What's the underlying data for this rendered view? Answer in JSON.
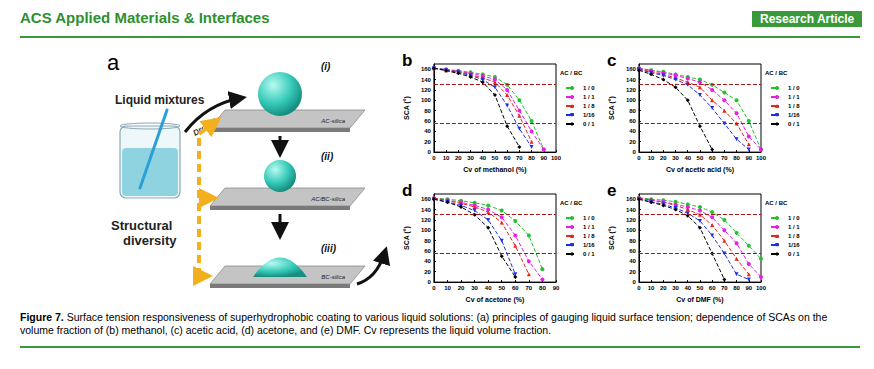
{
  "header": {
    "journal": "ACS Applied Materials & Interfaces",
    "section": "Research Article"
  },
  "panel_a": {
    "label": "a",
    "liquid": "Liquid mixtures",
    "action": "Dropping",
    "structure": "Structural diversity",
    "states": [
      {
        "label": "(i)",
        "surface": "AC-silica"
      },
      {
        "label": "(ii)",
        "surface": "AC/BC-silica"
      },
      {
        "label": "(iii)",
        "surface": "BC-silica"
      }
    ]
  },
  "chart_data": [
    {
      "type": "line",
      "panel": "b",
      "xlabel": "Cv of methanol (%)",
      "ylabel": "SCA (°)",
      "legend_title": "AC / BC",
      "legend": "right",
      "grid": false,
      "line_style": "dashed",
      "x": [
        0,
        10,
        20,
        30,
        40,
        50,
        60,
        70,
        80,
        90,
        100
      ],
      "xlim": [
        0,
        100
      ],
      "xticks": [
        0,
        10,
        20,
        30,
        40,
        50,
        60,
        70,
        80,
        90,
        100
      ],
      "ylim": [
        0,
        170
      ],
      "yticks": [
        0,
        20,
        40,
        60,
        80,
        100,
        120,
        140,
        160
      ],
      "hlines": [
        130,
        55
      ],
      "series": [
        {
          "name": "1 / 0",
          "color": "#22c32e",
          "marker": "circle",
          "values": [
            162,
            160,
            157,
            154,
            150,
            145,
            130,
            100,
            60,
            5,
            null
          ]
        },
        {
          "name": "1 / 1",
          "color": "#e61ee6",
          "marker": "circle",
          "values": [
            162,
            159,
            156,
            152,
            147,
            140,
            120,
            80,
            40,
            5,
            null
          ]
        },
        {
          "name": "1 / 8",
          "color": "#e8251f",
          "marker": "triangle",
          "values": [
            162,
            158,
            155,
            150,
            143,
            135,
            110,
            70,
            20,
            null,
            null
          ]
        },
        {
          "name": "1/16",
          "color": "#1f2fe6",
          "marker": "down-triangle",
          "values": [
            162,
            158,
            154,
            148,
            140,
            125,
            90,
            45,
            10,
            null,
            null
          ]
        },
        {
          "name": "0 / 1",
          "color": "#000000",
          "marker": "diamond",
          "values": [
            162,
            157,
            152,
            145,
            135,
            110,
            50,
            10,
            null,
            null,
            null
          ]
        }
      ]
    },
    {
      "type": "line",
      "panel": "c",
      "xlabel": "Cv of acetic acid (%)",
      "ylabel": "SCA (°)",
      "legend_title": "AC / BC",
      "legend": "right",
      "grid": false,
      "line_style": "dashed",
      "x": [
        0,
        10,
        20,
        30,
        40,
        50,
        60,
        70,
        80,
        90,
        100
      ],
      "xlim": [
        0,
        100
      ],
      "xticks": [
        0,
        10,
        20,
        30,
        40,
        50,
        60,
        70,
        80,
        90,
        100
      ],
      "ylim": [
        0,
        170
      ],
      "yticks": [
        0,
        20,
        40,
        60,
        80,
        100,
        120,
        140,
        160
      ],
      "hlines": [
        130,
        55
      ],
      "series": [
        {
          "name": "1 / 0",
          "color": "#22c32e",
          "marker": "circle",
          "values": [
            162,
            158,
            155,
            150,
            145,
            140,
            130,
            115,
            100,
            60,
            5
          ]
        },
        {
          "name": "1 / 1",
          "color": "#e61ee6",
          "marker": "circle",
          "values": [
            162,
            157,
            153,
            148,
            142,
            135,
            120,
            100,
            75,
            30,
            5
          ]
        },
        {
          "name": "1 / 8",
          "color": "#e8251f",
          "marker": "triangle",
          "values": [
            160,
            155,
            150,
            143,
            135,
            125,
            100,
            80,
            55,
            15,
            null
          ]
        },
        {
          "name": "1/16",
          "color": "#1f2fe6",
          "marker": "down-triangle",
          "values": [
            160,
            153,
            148,
            140,
            130,
            110,
            85,
            55,
            25,
            5,
            null
          ]
        },
        {
          "name": "0 / 1",
          "color": "#000000",
          "marker": "diamond",
          "values": [
            158,
            150,
            140,
            125,
            100,
            50,
            5,
            null,
            null,
            null,
            null
          ]
        }
      ]
    },
    {
      "type": "line",
      "panel": "d",
      "xlabel": "Cv of acetone (%)",
      "ylabel": "SCA (°)",
      "legend_title": "AC / BC",
      "legend": "right",
      "grid": false,
      "line_style": "dashed",
      "x": [
        0,
        10,
        20,
        30,
        40,
        50,
        60,
        70,
        80,
        90
      ],
      "xlim": [
        0,
        90
      ],
      "xticks": [
        0,
        10,
        20,
        30,
        40,
        50,
        60,
        70,
        80,
        90
      ],
      "ylim": [
        0,
        170
      ],
      "yticks": [
        0,
        20,
        40,
        60,
        80,
        100,
        120,
        140,
        160
      ],
      "hlines": [
        130,
        55
      ],
      "series": [
        {
          "name": "1 / 0",
          "color": "#22c32e",
          "marker": "circle",
          "values": [
            162,
            160,
            157,
            153,
            148,
            138,
            118,
            90,
            25,
            null
          ]
        },
        {
          "name": "1 / 1",
          "color": "#e61ee6",
          "marker": "circle",
          "values": [
            162,
            158,
            154,
            148,
            140,
            125,
            90,
            40,
            5,
            null
          ]
        },
        {
          "name": "1 / 8",
          "color": "#e8251f",
          "marker": "triangle",
          "values": [
            162,
            157,
            152,
            145,
            135,
            115,
            70,
            15,
            null,
            null
          ]
        },
        {
          "name": "1/16",
          "color": "#1f2fe6",
          "marker": "down-triangle",
          "values": [
            160,
            155,
            148,
            138,
            120,
            80,
            15,
            null,
            null,
            null
          ]
        },
        {
          "name": "0 / 1",
          "color": "#000000",
          "marker": "diamond",
          "values": [
            160,
            154,
            145,
            130,
            105,
            50,
            10,
            null,
            null,
            null
          ]
        }
      ]
    },
    {
      "type": "line",
      "panel": "e",
      "xlabel": "Cv of DMF (%)",
      "ylabel": "SCA (°)",
      "legend_title": "AC / BC",
      "legend": "right",
      "grid": false,
      "line_style": "dashed",
      "x": [
        0,
        10,
        20,
        30,
        40,
        50,
        60,
        70,
        80,
        90,
        100
      ],
      "xlim": [
        0,
        100
      ],
      "xticks": [
        0,
        10,
        20,
        30,
        40,
        50,
        60,
        70,
        80,
        90,
        100
      ],
      "ylim": [
        0,
        170
      ],
      "yticks": [
        0,
        20,
        40,
        60,
        80,
        100,
        120,
        140,
        160
      ],
      "hlines": [
        130,
        55
      ],
      "series": [
        {
          "name": "1 / 0",
          "color": "#22c32e",
          "marker": "circle",
          "values": [
            163,
            160,
            158,
            155,
            150,
            145,
            135,
            120,
            95,
            70,
            45
          ]
        },
        {
          "name": "1 / 1",
          "color": "#e61ee6",
          "marker": "circle",
          "values": [
            162,
            158,
            155,
            150,
            145,
            138,
            125,
            100,
            75,
            35,
            10
          ]
        },
        {
          "name": "1 / 8",
          "color": "#e8251f",
          "marker": "triangle",
          "values": [
            162,
            158,
            154,
            148,
            140,
            130,
            110,
            80,
            45,
            15,
            null
          ]
        },
        {
          "name": "1/16",
          "color": "#1f2fe6",
          "marker": "down-triangle",
          "values": [
            160,
            155,
            150,
            143,
            133,
            118,
            90,
            55,
            15,
            5,
            null
          ]
        },
        {
          "name": "0 / 1",
          "color": "#000000",
          "marker": "diamond",
          "values": [
            160,
            154,
            148,
            140,
            128,
            105,
            55,
            5,
            null,
            null,
            null
          ]
        }
      ]
    }
  ],
  "caption": {
    "label": "Figure 7.",
    "text": "Surface tension responsiveness of superhydrophobic coating to various liquid solutions: (a) principles of gauging liquid surface tension; dependence of SCAs on the volume fraction of (b) methanol, (c) acetic acid, (d) acetone, and (e) DMF. Cv represents the liquid volume fraction."
  }
}
